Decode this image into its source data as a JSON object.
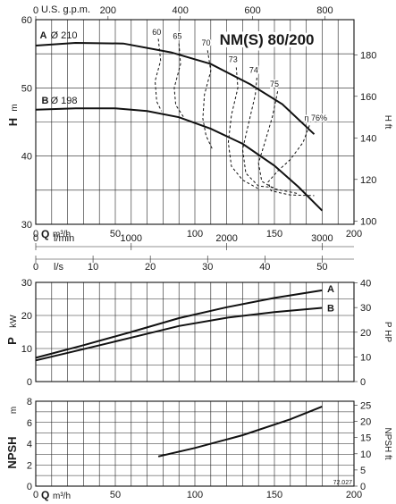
{
  "chart_data": [
    {
      "type": "line",
      "title": "NM(S) 80/200",
      "ylabel": "H",
      "yunit": "m",
      "y2label": "H",
      "y2unit": "ft",
      "xlabel": "Q",
      "xunit": "m³/h",
      "xlim": [
        0,
        200
      ],
      "ylim": [
        30,
        60
      ],
      "y2lim": [
        98.4,
        196.9
      ],
      "grid": true,
      "x_ticks": [
        "0",
        "50",
        "100",
        "150",
        "200"
      ],
      "y_ticks": [
        "30",
        "40",
        "50",
        "60"
      ],
      "y2_ticks": [
        "100",
        "120",
        "140",
        "160",
        "180"
      ],
      "top_axis": {
        "label": "U.S. g.p.m.",
        "ticks": [
          "0",
          "200",
          "400",
          "600",
          "800"
        ]
      },
      "extra_axes": [
        {
          "label": "l/min",
          "ticks": [
            "0",
            "1000",
            "2000",
            "3000"
          ]
        },
        {
          "label": "l/s",
          "ticks": [
            "0",
            "10",
            "20",
            "30",
            "40",
            "50"
          ]
        }
      ],
      "series": [
        {
          "name": "A",
          "label": "Ø 210",
          "x": [
            0,
            25,
            55,
            85,
            110,
            135,
            155,
            175
          ],
          "y": [
            56.2,
            56.6,
            56.5,
            55.2,
            53.5,
            50.5,
            47.6,
            43.2
          ]
        },
        {
          "name": "B",
          "label": "Ø 198",
          "x": [
            0,
            25,
            50,
            70,
            90,
            110,
            130,
            150,
            165,
            180
          ],
          "y": [
            46.8,
            47.0,
            47.0,
            46.6,
            45.7,
            44.0,
            41.8,
            38.6,
            35.5,
            32.0
          ]
        }
      ],
      "efficiency_labels": [
        "60",
        "65",
        "70",
        "73",
        "74",
        "75",
        "η 76%"
      ],
      "efficiency_contours": [
        {
          "x": [
            77,
            78.5,
            75,
            76,
            79
          ],
          "y": [
            57.2,
            54,
            51,
            48,
            46.6
          ]
        },
        {
          "x": [
            90,
            91,
            87,
            88,
            93
          ],
          "y": [
            56.5,
            53.5,
            50,
            47.5,
            45.7
          ]
        },
        {
          "x": [
            108,
            110,
            106,
            105,
            107,
            111
          ],
          "y": [
            55.5,
            52.5,
            49,
            45.5,
            43,
            41
          ]
        },
        {
          "x": [
            126,
            127,
            123,
            121,
            123,
            130,
            140
          ],
          "y": [
            53.0,
            50,
            46,
            42,
            38.5,
            36.5,
            35.2
          ]
        },
        {
          "x": [
            139,
            138,
            134,
            130,
            132,
            140,
            150
          ],
          "y": [
            51.5,
            49,
            45,
            41,
            37.5,
            35.6,
            35.4
          ]
        },
        {
          "x": [
            152,
            149,
            144,
            140,
            142,
            150,
            165
          ],
          "y": [
            49.5,
            46,
            42,
            39,
            36.3,
            35.2,
            34.5
          ]
        },
        {
          "x": [
            172,
            168,
            160,
            152,
            146,
            148,
            160,
            175
          ],
          "y": [
            44.5,
            42,
            39.5,
            37.8,
            36.2,
            34.9,
            34.3,
            34.2
          ]
        }
      ]
    },
    {
      "type": "line",
      "ylabel": "P",
      "yunit": "kW",
      "y2label": "P",
      "y2unit": "HP",
      "xlim": [
        0,
        200
      ],
      "ylim": [
        0,
        30
      ],
      "y2lim": [
        0,
        40.2
      ],
      "grid": true,
      "x_ticks": [
        "0",
        "50",
        "100",
        "150",
        "200"
      ],
      "y_ticks": [
        "0",
        "10",
        "20",
        "30"
      ],
      "y2_ticks": [
        "0",
        "10",
        "20",
        "30",
        "40"
      ],
      "series": [
        {
          "name": "A",
          "x": [
            0,
            30,
            60,
            90,
            120,
            150,
            180
          ],
          "y": [
            7.2,
            11.0,
            15.0,
            19.2,
            22.5,
            25.3,
            27.6
          ]
        },
        {
          "name": "B",
          "x": [
            0,
            30,
            60,
            90,
            120,
            150,
            180
          ],
          "y": [
            6.4,
            9.8,
            13.3,
            16.8,
            19.3,
            21.0,
            22.3
          ]
        }
      ]
    },
    {
      "type": "line",
      "ylabel": "NPSH",
      "yunit": "m",
      "y2label": "NPSH",
      "y2unit": "ft",
      "xlabel": "Q",
      "xunit": "m³/h",
      "xlim": [
        0,
        200
      ],
      "ylim": [
        0,
        8
      ],
      "y2lim": [
        0,
        26.25
      ],
      "grid": true,
      "x_ticks": [
        "0",
        "50",
        "100",
        "150",
        "200"
      ],
      "y_ticks": [
        "0",
        "2",
        "4",
        "6",
        "8"
      ],
      "y2_ticks": [
        "0",
        "5",
        "10",
        "15",
        "20",
        "25"
      ],
      "code": "72.027",
      "series": [
        {
          "name": "NPSH",
          "x": [
            77,
            100,
            130,
            160,
            180
          ],
          "y": [
            2.8,
            3.6,
            4.8,
            6.3,
            7.5
          ]
        }
      ]
    }
  ]
}
